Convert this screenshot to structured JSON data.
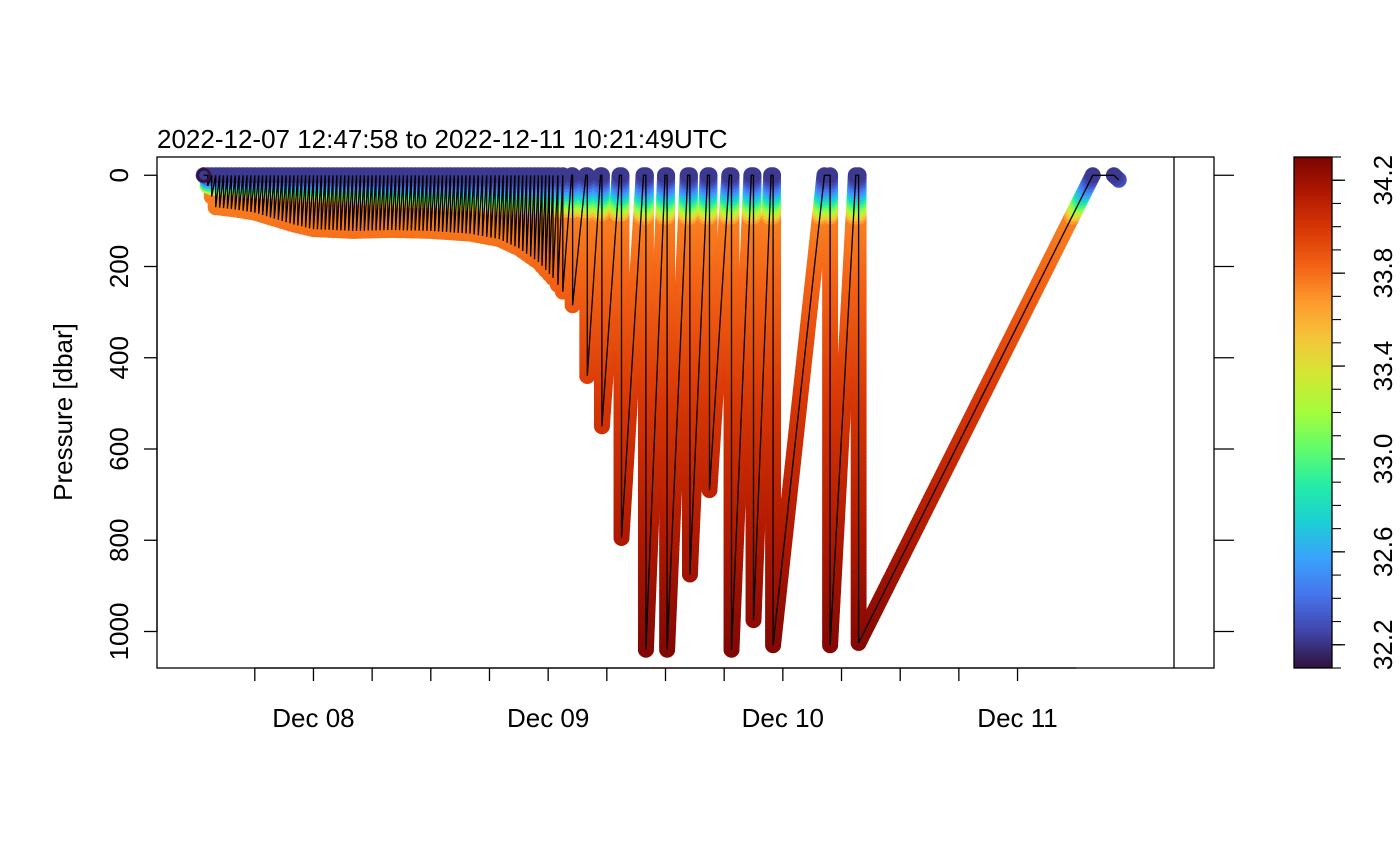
{
  "chart_data": {
    "type": "scatter",
    "title": "2022-12-07 12:47:58 to 2022-12-11 10:21:49UTC",
    "xlabel": "",
    "ylabel": "Pressure [dbar]",
    "x_tick_labels": [
      "Dec 08",
      "Dec 09",
      "Dec 10",
      "Dec 11"
    ],
    "x_major_ticks": [
      "2022-12-08T00:00",
      "2022-12-09T00:00",
      "2022-12-10T00:00",
      "2022-12-11T00:00"
    ],
    "y_ticks": [
      0,
      200,
      400,
      600,
      800,
      1000
    ],
    "y_tick_labels": [
      "0",
      "200",
      "400",
      "600",
      "800",
      "1000"
    ],
    "y_reversed": true,
    "ylim": [
      1080,
      -40
    ],
    "xlim": [
      "2022-12-07T08:00",
      "2022-12-11T16:00"
    ],
    "data_end": "2022-12-11T10:21",
    "grid": false,
    "color_variable_range": [
      32.1,
      34.3
    ],
    "colorbar_ticks": [
      32.2,
      32.6,
      33.0,
      33.4,
      33.8,
      34.2
    ],
    "colorbar_tick_labels": [
      "32.2",
      "32.6",
      "33.0",
      "33.4",
      "33.8",
      "34.2"
    ],
    "colorbar_placement": "right",
    "colormap": [
      "#30123b",
      "#4145ab",
      "#4675ed",
      "#39a2fc",
      "#1bcfd4",
      "#24eca6",
      "#61fc6c",
      "#a4fc3b",
      "#d1e834",
      "#f3c63a",
      "#fe9b2d",
      "#f36315",
      "#d93806",
      "#b11901",
      "#7a0403"
    ],
    "profile_turns": [
      {
        "time": "2022-12-07T12:47",
        "pressure": 0
      },
      {
        "time": "2022-12-07T14:00",
        "pressure": 70
      },
      {
        "time": "2022-12-07T16:00",
        "pressure": 75
      },
      {
        "time": "2022-12-07T18:00",
        "pressure": 82
      },
      {
        "time": "2022-12-07T20:00",
        "pressure": 95
      },
      {
        "time": "2022-12-07T22:00",
        "pressure": 108
      },
      {
        "time": "2022-12-08T00:00",
        "pressure": 118
      },
      {
        "time": "2022-12-08T04:00",
        "pressure": 122
      },
      {
        "time": "2022-12-08T08:00",
        "pressure": 120
      },
      {
        "time": "2022-12-08T12:00",
        "pressure": 122
      },
      {
        "time": "2022-12-08T16:00",
        "pressure": 128
      },
      {
        "time": "2022-12-08T19:00",
        "pressure": 140
      },
      {
        "time": "2022-12-08T21:00",
        "pressure": 160
      },
      {
        "time": "2022-12-08T23:00",
        "pressure": 190
      },
      {
        "time": "2022-12-09T00:30",
        "pressure": 225
      },
      {
        "time": "2022-12-09T01:30",
        "pressure": 255
      },
      {
        "time": "2022-12-09T02:30",
        "pressure": 285
      },
      {
        "time": "2022-12-09T04:00",
        "pressure": 440
      },
      {
        "time": "2022-12-09T05:30",
        "pressure": 550
      },
      {
        "time": "2022-12-09T07:30",
        "pressure": 795
      },
      {
        "time": "2022-12-09T10:00",
        "pressure": 1040
      },
      {
        "time": "2022-12-09T12:10",
        "pressure": 1040
      },
      {
        "time": "2022-12-09T14:30",
        "pressure": 875
      },
      {
        "time": "2022-12-09T16:30",
        "pressure": 690
      },
      {
        "time": "2022-12-09T18:45",
        "pressure": 1040
      },
      {
        "time": "2022-12-09T21:00",
        "pressure": 975
      },
      {
        "time": "2022-12-09T23:00",
        "pressure": 1030
      },
      {
        "time": "2022-12-10T04:50",
        "pressure": 1030
      },
      {
        "time": "2022-12-10T07:45",
        "pressure": 1025
      }
    ]
  }
}
